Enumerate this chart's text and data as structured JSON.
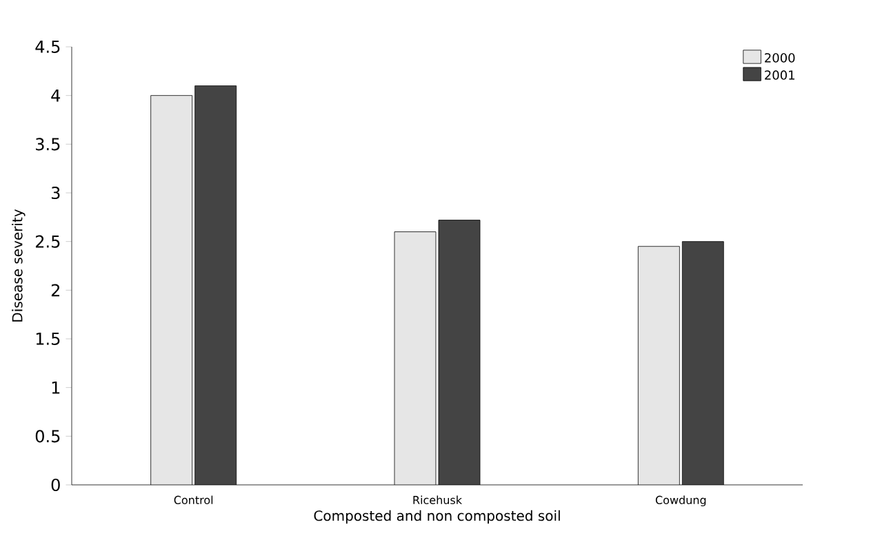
{
  "chart_data": {
    "type": "bar",
    "xlabel": "Composted and non composted soil",
    "ylabel": "Disease severity",
    "categories": [
      "Control",
      "Ricehusk",
      "Cowdung"
    ],
    "series": [
      {
        "name": "2000",
        "color": "#e6e6e6",
        "values": [
          4.0,
          2.6,
          2.45
        ]
      },
      {
        "name": "2001",
        "color": "#444444",
        "values": [
          4.1,
          2.72,
          2.5
        ]
      }
    ],
    "ylim": [
      0,
      4.5
    ],
    "yticks": [
      0,
      0.5,
      1,
      1.5,
      2,
      2.5,
      3,
      3.5,
      4,
      4.5
    ],
    "grid": false,
    "legend": "top right"
  }
}
